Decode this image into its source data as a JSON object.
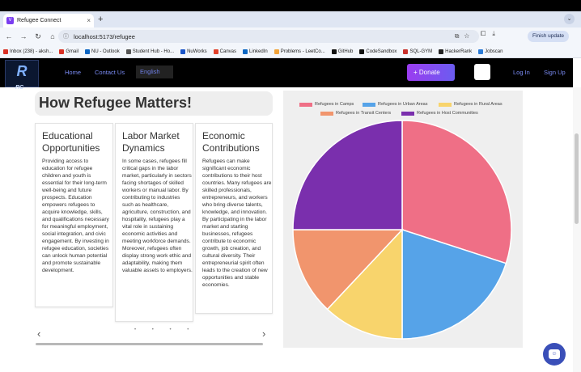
{
  "browser": {
    "tab_title": "Refugee Connect",
    "new_tab": "+",
    "url": "localhost:5173/refugee",
    "finish_update": "Finish update",
    "bookmarks": [
      "Inbox (238) - aksh...",
      "Gmail",
      "NU - Outlook",
      "Student Hub - Ho...",
      "NuWorks",
      "Canvas",
      "LinkedIn",
      "Problems - LeetCo...",
      "GitHub",
      "CodeSandbox",
      "SQL-GYM",
      "HackerRank",
      "Jobscan"
    ]
  },
  "app": {
    "logo_text": "R",
    "logo_sub": "RC",
    "nav": {
      "home": "Home",
      "contact": "Contact Us",
      "language": "English",
      "donate": "+ Donate",
      "login": "Log In",
      "signup": "Sign Up"
    }
  },
  "section": {
    "title": "How Refugee Matters!",
    "cards": [
      {
        "title": "Educational Opportunities",
        "body": "Providing access to education for refugee children and youth is essential for their long-term well-being and future prospects. Education empowers refugees to acquire knowledge, skills, and qualifications necessary for meaningful employment, social integration, and civic engagement. By investing in refugee education, societies can unlock human potential and promote sustainable development."
      },
      {
        "title": "Labor Market Dynamics",
        "body": "In some cases, refugees fill critical gaps in the labor market, particularly in sectors facing shortages of skilled workers or manual labor. By contributing to industries such as healthcare, agriculture, construction, and hospitality, refugees play a vital role in sustaining economic activities and meeting workforce demands. Moreover, refugees often display strong work ethic and adaptability, making them valuable assets to employers."
      },
      {
        "title": "Economic Contributions",
        "body": "Refugees can make significant economic contributions to their host countries. Many refugees are skilled professionals, entrepreneurs, and workers who bring diverse talents, knowledge, and innovation. By participating in the labor market and starting businesses, refugees contribute to economic growth, job creation, and cultural diversity. Their entrepreneurial spirit often leads to the creation of new opportunities and stable economies."
      }
    ],
    "carousel": {
      "prev": "‹",
      "next": "›",
      "dots": "• • • •"
    }
  },
  "chart_data": {
    "type": "pie",
    "labels": [
      "Refugees in Camps",
      "Refugees in Urban Areas",
      "Refugees in Rural Areas",
      "Refugees in Transit Centers",
      "Refugees in Host Communities"
    ],
    "values": [
      30,
      20,
      12,
      13,
      25
    ],
    "colors": [
      "#ef6f86",
      "#56a3e8",
      "#f8d46c",
      "#f1956d",
      "#7a2fad"
    ],
    "legend_position": "top"
  }
}
